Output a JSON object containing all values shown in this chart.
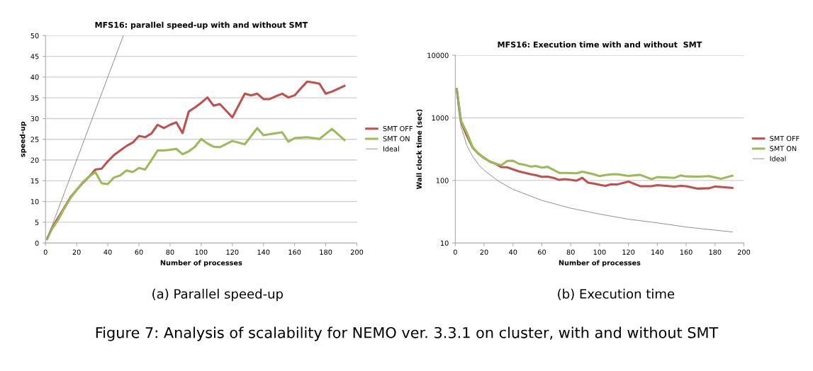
{
  "chart_data": [
    {
      "type": "line",
      "title": "MFS16: parallel speed-up with and without SMT",
      "xlabel": "Number of processes",
      "ylabel": "speed-up",
      "xlim": [
        0,
        200
      ],
      "xticks": [
        0,
        20,
        40,
        60,
        80,
        100,
        120,
        140,
        160,
        180,
        200
      ],
      "ylim": [
        0,
        50
      ],
      "yticks": [
        0,
        5,
        10,
        15,
        20,
        25,
        30,
        35,
        40,
        45,
        50
      ],
      "grid": "y",
      "legend": "right",
      "marker": "none",
      "series": [
        {
          "name": "SMT OFF",
          "color": "#c0504d",
          "x": [
            1,
            4,
            8,
            12,
            16,
            20,
            24,
            28,
            32,
            36,
            40,
            44,
            48,
            52,
            56,
            60,
            64,
            68,
            72,
            76,
            80,
            84,
            88,
            92,
            96,
            100,
            104,
            108,
            112,
            120,
            128,
            132,
            136,
            140,
            144,
            148,
            152,
            156,
            160,
            164,
            168,
            172,
            176,
            180,
            184,
            188,
            192
          ],
          "values": [
            1,
            3.5,
            6,
            8.5,
            11,
            12.8,
            14.5,
            16,
            17.7,
            17.9,
            19.7,
            21.2,
            22.3,
            23.4,
            24.2,
            25.8,
            25.5,
            26.4,
            28.5,
            27.7,
            28.5,
            29.1,
            26.5,
            31.7,
            32.7,
            33.8,
            35.1,
            33.1,
            33.5,
            30.3,
            36,
            35.6,
            36,
            34.7,
            34.7,
            35.4,
            36,
            35.1,
            35.6,
            37.3,
            38.9,
            38.7,
            38.4,
            36,
            36.5,
            37.2,
            37.9
          ]
        },
        {
          "name": "SMT ON",
          "color": "#9bbb59",
          "x": [
            1,
            4,
            8,
            12,
            16,
            20,
            24,
            28,
            32,
            36,
            40,
            44,
            48,
            52,
            56,
            60,
            64,
            68,
            72,
            76,
            80,
            84,
            88,
            92,
            96,
            100,
            104,
            108,
            112,
            120,
            128,
            136,
            140,
            152,
            156,
            160,
            168,
            176,
            184,
            192
          ],
          "values": [
            1,
            3.3,
            5.5,
            8.3,
            10.8,
            12.8,
            14.7,
            16,
            17.1,
            14.4,
            14.2,
            15.8,
            16.3,
            17.5,
            17.1,
            18.1,
            17.7,
            20,
            22.3,
            22.3,
            22.5,
            22.7,
            21.4,
            22.1,
            23.2,
            25.1,
            24,
            23.2,
            23.1,
            24.6,
            23.8,
            27.7,
            26,
            26.7,
            24.4,
            25.3,
            25.5,
            25.1,
            27.5,
            24.8
          ]
        },
        {
          "name": "Ideal",
          "color": "#8c8c8c",
          "x": [
            1,
            50
          ],
          "values": [
            1,
            50
          ]
        }
      ],
      "annotations": [
        "(a) Parallel speed-up",
        "Figure 7: Analysis of scalability for NEMO ver. 3.3.1 on cluster, with and without SMT"
      ]
    },
    {
      "type": "line",
      "title": "MFS16: Execution time with and without  SMT",
      "xlabel": "Number of processes",
      "ylabel": "Wall clock time (sec)",
      "log": "y",
      "xlim": [
        0,
        200
      ],
      "xticks": [
        0,
        20,
        40,
        60,
        80,
        100,
        120,
        140,
        160,
        180,
        200
      ],
      "ylim": [
        10,
        10000
      ],
      "yticks": [
        10,
        100,
        1000,
        10000
      ],
      "grid": "y",
      "legend": "right",
      "marker": "none",
      "series": [
        {
          "name": "SMT OFF",
          "color": "#c0504d",
          "x": [
            1,
            4,
            8,
            12,
            16,
            20,
            24,
            28,
            32,
            36,
            40,
            44,
            48,
            52,
            56,
            60,
            64,
            68,
            72,
            76,
            80,
            84,
            88,
            92,
            96,
            100,
            104,
            108,
            112,
            120,
            128,
            136,
            140,
            152,
            156,
            160,
            168,
            176,
            180,
            192
          ],
          "values": [
            2900,
            860,
            520,
            335,
            268,
            228,
            200,
            184,
            163,
            162,
            150,
            140,
            133,
            126,
            121,
            114,
            115,
            110,
            102,
            105,
            102,
            99,
            110,
            92,
            89,
            85,
            82,
            87,
            86,
            96,
            81,
            81,
            84,
            80,
            82,
            81,
            74,
            75,
            80,
            76
          ]
        },
        {
          "name": "SMT ON",
          "color": "#9bbb59",
          "x": [
            1,
            4,
            8,
            12,
            16,
            20,
            24,
            28,
            32,
            36,
            40,
            44,
            48,
            52,
            56,
            60,
            64,
            68,
            72,
            76,
            80,
            84,
            88,
            92,
            96,
            100,
            104,
            108,
            112,
            120,
            128,
            136,
            140,
            152,
            156,
            160,
            168,
            176,
            184,
            192
          ],
          "values": [
            2900,
            900,
            580,
            340,
            270,
            230,
            200,
            185,
            175,
            205,
            207,
            185,
            178,
            167,
            170,
            160,
            165,
            148,
            132,
            132,
            131,
            130,
            138,
            132,
            125,
            117,
            122,
            125,
            126,
            118,
            123,
            105,
            113,
            110,
            120,
            116,
            115,
            117,
            106,
            119
          ]
        },
        {
          "name": "Ideal",
          "color": "#8c8c8c",
          "x": [
            1,
            2,
            4,
            8,
            12,
            16,
            20,
            30,
            40,
            60,
            80,
            100,
            120,
            140,
            160,
            192
          ],
          "values": [
            2900,
            1450,
            725,
            362,
            242,
            181,
            145,
            97,
            72,
            48,
            36,
            29,
            24,
            21,
            18,
            15
          ]
        }
      ],
      "annotations": [
        "(b) Execution time"
      ]
    }
  ]
}
